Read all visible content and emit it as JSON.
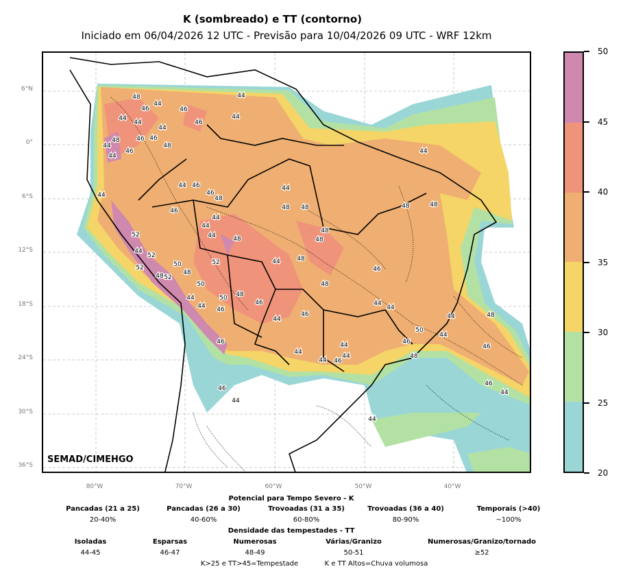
{
  "title": "K (sombreado) e TT (contorno)",
  "subtitle": "Iniciado em 06/04/2026 12 UTC - Previsão para 10/04/2026 09 UTC - WRF 12km",
  "credit": "SEMAD/CIMEHGO",
  "lat_ticks": [
    "6°N",
    "0°",
    "6°S",
    "12°S",
    "18°S",
    "24°S",
    "30°S",
    "36°S"
  ],
  "lon_ticks": [
    "80°W",
    "70°W",
    "60°W",
    "50°W",
    "40°W"
  ],
  "colorbar": {
    "ticks": [
      "50",
      "45",
      "40",
      "35",
      "30",
      "25",
      "20"
    ],
    "colors": [
      "#cf88ae",
      "#f0937b",
      "#efaf72",
      "#f5d567",
      "#b3e1a3",
      "#9ad6d6"
    ]
  },
  "contour_labels": [
    "48",
    "44",
    "46",
    "44",
    "44",
    "44",
    "46",
    "44",
    "46",
    "44",
    "48",
    "46",
    "46",
    "44",
    "48",
    "46",
    "44",
    "44",
    "44",
    "46",
    "46",
    "48",
    "44",
    "44",
    "46",
    "48",
    "48",
    "48",
    "48",
    "44",
    "44",
    "48",
    "44",
    "48",
    "48",
    "52",
    "44",
    "52",
    "50",
    "52",
    "44",
    "48",
    "46",
    "52",
    "48",
    "52",
    "48",
    "50",
    "48",
    "50",
    "48",
    "46",
    "44",
    "44",
    "46",
    "44",
    "44",
    "46",
    "44",
    "44",
    "48",
    "50",
    "44",
    "46",
    "46",
    "44",
    "46",
    "44",
    "44",
    "44",
    "46",
    "48",
    "46",
    "44",
    "46",
    "44",
    "44"
  ],
  "legend": {
    "k_title": "Potencial para Tempo Severo - K",
    "k_items": [
      {
        "label": "Pancadas (21 a 25)",
        "value": "20-40%"
      },
      {
        "label": "Pancadas (26 a 30)",
        "value": "40-60%"
      },
      {
        "label": "Trovoadas (31 a 35)",
        "value": "60-80%"
      },
      {
        "label": "Trovoadas (36 a 40)",
        "value": "80-90%"
      },
      {
        "label": "Temporais (>40)",
        "value": "~100%"
      }
    ],
    "tt_title": "Densidade das tempestades - TT",
    "tt_items": [
      {
        "label": "Isoladas",
        "value": "44-45"
      },
      {
        "label": "Esparsas",
        "value": "46-47"
      },
      {
        "label": "Numerosas",
        "value": "48-49"
      },
      {
        "label": "Várias/Granizo",
        "value": "50-51"
      },
      {
        "label": "Numerosas/Granizo/tornado",
        "value": "≥52"
      }
    ],
    "note1": "K>25 e TT>45=Tempestade",
    "note2": "K e TT Altos=Chuva volumosa"
  }
}
